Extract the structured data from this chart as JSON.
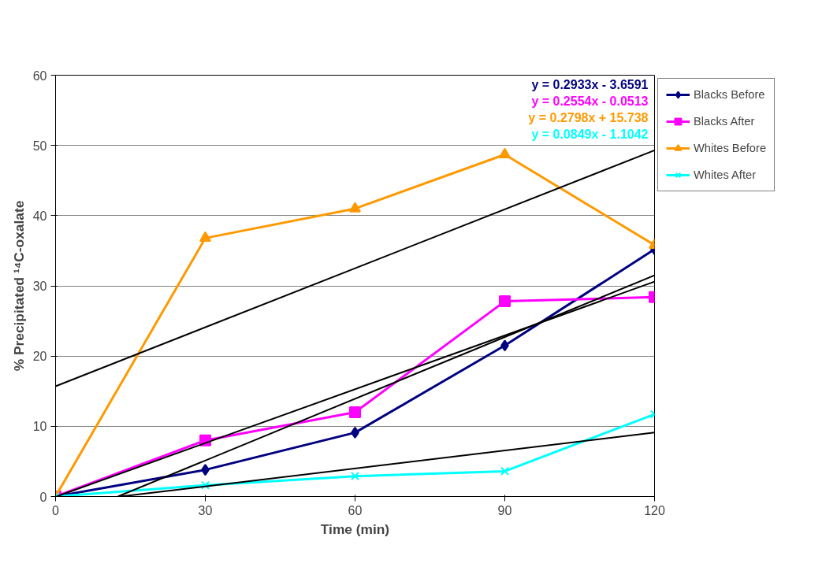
{
  "chart_data": {
    "type": "line",
    "xlabel": "Time (min)",
    "ylabel": "% Precipitated ¹⁴C-oxalate",
    "x": [
      0,
      30,
      60,
      90,
      120
    ],
    "xlim": [
      0,
      120
    ],
    "xticks": [
      0,
      30,
      60,
      90,
      120
    ],
    "ylim": [
      0,
      60
    ],
    "yticks": [
      0,
      10,
      20,
      30,
      40,
      50,
      60
    ],
    "grid": "y",
    "legend": "right",
    "series": [
      {
        "name": "Blacks Before",
        "color": "#000080",
        "marker": "diamond",
        "values": [
          0,
          3.8,
          9.1,
          21.5,
          35.2
        ]
      },
      {
        "name": "Blacks After",
        "color": "#ff00ff",
        "marker": "square",
        "values": [
          0,
          8.0,
          12.0,
          27.8,
          28.4
        ]
      },
      {
        "name": "Whites Before",
        "color": "#ff9900",
        "marker": "triangle",
        "values": [
          0,
          36.8,
          41.0,
          48.7,
          35.8
        ]
      },
      {
        "name": "Whites After",
        "color": "#00ffff",
        "marker": "cross",
        "values": [
          0,
          1.6,
          2.9,
          3.6,
          11.7
        ]
      },
      {
        "type": "line",
        "color": "#000000",
        "marker": "none",
        "x": [
          12.5,
          120
        ],
        "values": [
          0,
          31.5
        ]
      },
      {
        "type": "line",
        "color": "#000000",
        "marker": "none",
        "x": [
          0.2,
          120
        ],
        "values": [
          0,
          30.6
        ]
      },
      {
        "type": "line",
        "color": "#000000",
        "marker": "none",
        "x": [
          0,
          120
        ],
        "values": [
          15.7,
          49.3
        ]
      },
      {
        "type": "line",
        "color": "#000000",
        "marker": "none",
        "x": [
          13,
          120
        ],
        "values": [
          0,
          9.1
        ]
      }
    ],
    "annotations": [
      "y = 0.2933x - 3.6591",
      "y = 0.2554x - 0.0513",
      "y = 0.2798x + 15.738",
      "y = 0.0849x - 1.1042"
    ]
  }
}
